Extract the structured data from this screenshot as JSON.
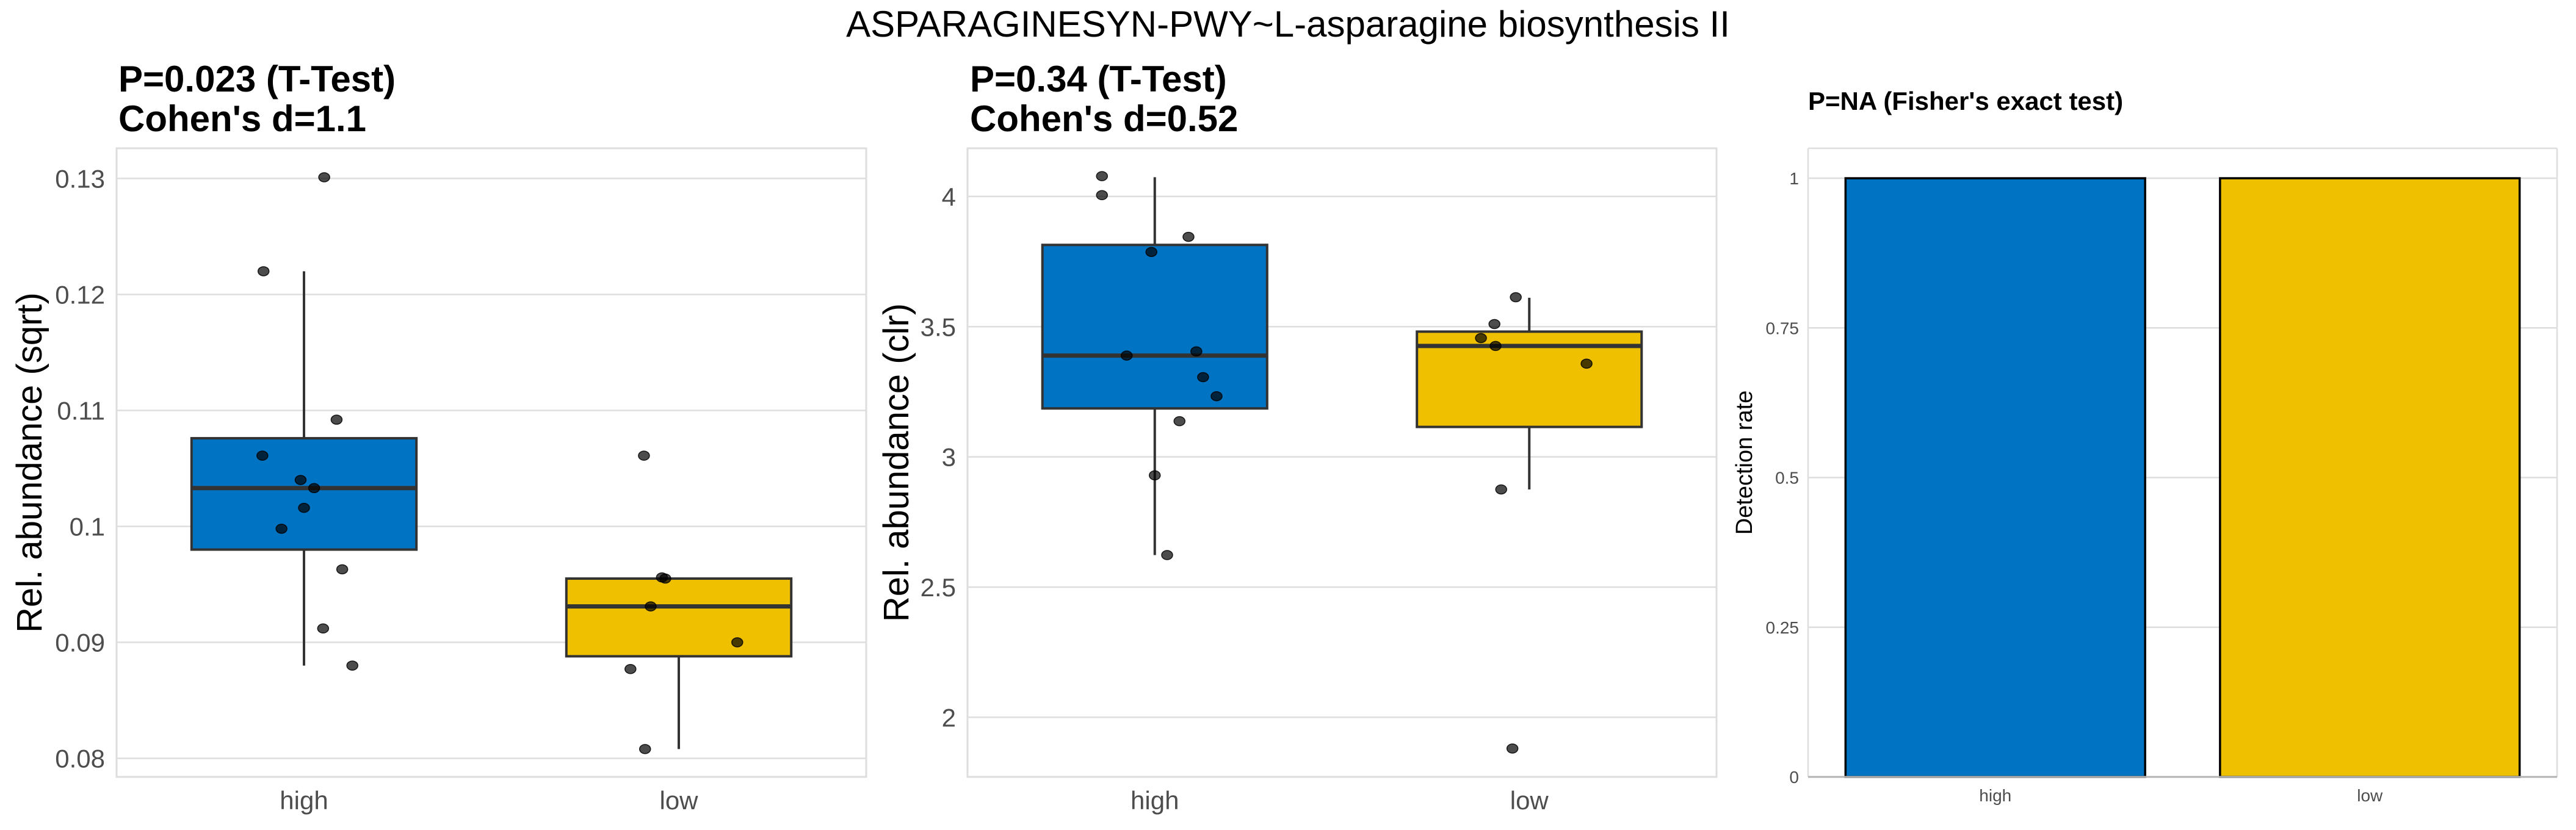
{
  "figure": {
    "title": "ASPARAGINESYN-PWY~L-asparagine biosynthesis II"
  },
  "colors": {
    "high": "#0073C2",
    "low": "#EFC000",
    "points": "#333333",
    "box_line": "#333333",
    "grid": "#DEDEDE",
    "tick_text": "#4D4D4D"
  },
  "chart_data": [
    {
      "type": "box",
      "title_lines": [
        "P=0.023 (T-Test)",
        "Cohen's d=1.1"
      ],
      "xlabel": "",
      "ylabel": "Rel. abundance (sqrt)",
      "categories": [
        "high",
        "low"
      ],
      "ylim": [
        0.0784,
        0.1326
      ],
      "yticks": [
        0.08,
        0.09,
        0.1,
        0.11,
        0.12,
        0.13
      ],
      "ytick_labels": [
        "0.08",
        "0.09",
        "0.1",
        "0.11",
        "0.12",
        "0.13"
      ],
      "grid": true,
      "series": [
        {
          "name": "high",
          "box": {
            "whisker_low": 0.088,
            "q1": 0.098,
            "median": 0.1033,
            "q3": 0.1076,
            "whisker_high": 0.122
          },
          "points": [
            {
              "y": 0.1301,
              "jitter": 0.18
            },
            {
              "y": 0.122,
              "jitter": -0.36
            },
            {
              "y": 0.1092,
              "jitter": 0.29
            },
            {
              "y": 0.1061,
              "jitter": -0.37
            },
            {
              "y": 0.104,
              "jitter": -0.03
            },
            {
              "y": 0.1033,
              "jitter": 0.09
            },
            {
              "y": 0.1016,
              "jitter": 0.0
            },
            {
              "y": 0.0998,
              "jitter": -0.2
            },
            {
              "y": 0.0963,
              "jitter": 0.34
            },
            {
              "y": 0.0912,
              "jitter": 0.17
            },
            {
              "y": 0.088,
              "jitter": 0.43
            }
          ]
        },
        {
          "name": "low",
          "box": {
            "whisker_low": 0.0808,
            "q1": 0.0888,
            "median": 0.0931,
            "q3": 0.0955,
            "whisker_high": 0.0956
          },
          "points": [
            {
              "y": 0.1061,
              "jitter": -0.31
            },
            {
              "y": 0.0956,
              "jitter": -0.15
            },
            {
              "y": 0.0955,
              "jitter": -0.12
            },
            {
              "y": 0.0931,
              "jitter": -0.25
            },
            {
              "y": 0.09,
              "jitter": 0.52
            },
            {
              "y": 0.0877,
              "jitter": -0.43
            },
            {
              "y": 0.0808,
              "jitter": -0.3
            }
          ]
        }
      ]
    },
    {
      "type": "box",
      "title_lines": [
        "P=0.34 (T-Test)",
        "Cohen's d=0.52"
      ],
      "xlabel": "",
      "ylabel": "Rel. abundance (clr)",
      "categories": [
        "high",
        "low"
      ],
      "ylim": [
        1.771,
        4.185
      ],
      "yticks": [
        2,
        2.5,
        3,
        3.5,
        4
      ],
      "ytick_labels": [
        "2",
        "2.5",
        "3",
        "3.5",
        "4"
      ],
      "grid": true,
      "series": [
        {
          "name": "high",
          "box": {
            "whisker_low": 2.623,
            "q1": 3.186,
            "median": 3.389,
            "q3": 3.814,
            "whisker_high": 4.074
          },
          "points": [
            {
              "y": 4.078,
              "jitter": -0.47
            },
            {
              "y": 4.005,
              "jitter": -0.47
            },
            {
              "y": 3.845,
              "jitter": 0.3
            },
            {
              "y": 3.787,
              "jitter": -0.03
            },
            {
              "y": 3.405,
              "jitter": 0.37
            },
            {
              "y": 3.389,
              "jitter": -0.25
            },
            {
              "y": 3.306,
              "jitter": 0.43
            },
            {
              "y": 3.233,
              "jitter": 0.55
            },
            {
              "y": 3.137,
              "jitter": 0.22
            },
            {
              "y": 2.929,
              "jitter": 0.0
            },
            {
              "y": 2.623,
              "jitter": 0.11
            }
          ]
        },
        {
          "name": "low",
          "box": {
            "whisker_low": 2.875,
            "q1": 3.115,
            "median": 3.426,
            "q3": 3.481,
            "whisker_high": 3.611
          },
          "points": [
            {
              "y": 3.613,
              "jitter": -0.12
            },
            {
              "y": 3.51,
              "jitter": -0.31
            },
            {
              "y": 3.456,
              "jitter": -0.43
            },
            {
              "y": 3.426,
              "jitter": -0.3
            },
            {
              "y": 3.358,
              "jitter": 0.51
            },
            {
              "y": 2.875,
              "jitter": -0.25
            },
            {
              "y": 1.88,
              "jitter": -0.15
            }
          ]
        }
      ]
    },
    {
      "type": "bar",
      "title_lines": [
        "P=NA (Fisher's exact test)"
      ],
      "xlabel": "",
      "ylabel": "Detection rate",
      "categories": [
        "high",
        "low"
      ],
      "values": [
        1,
        1
      ],
      "ylim": [
        0,
        1.05
      ],
      "yticks": [
        0,
        0.25,
        0.5,
        0.75,
        1
      ],
      "ytick_labels": [
        "0",
        "0.25",
        "0.5",
        "0.75",
        "1"
      ],
      "grid": true
    }
  ]
}
